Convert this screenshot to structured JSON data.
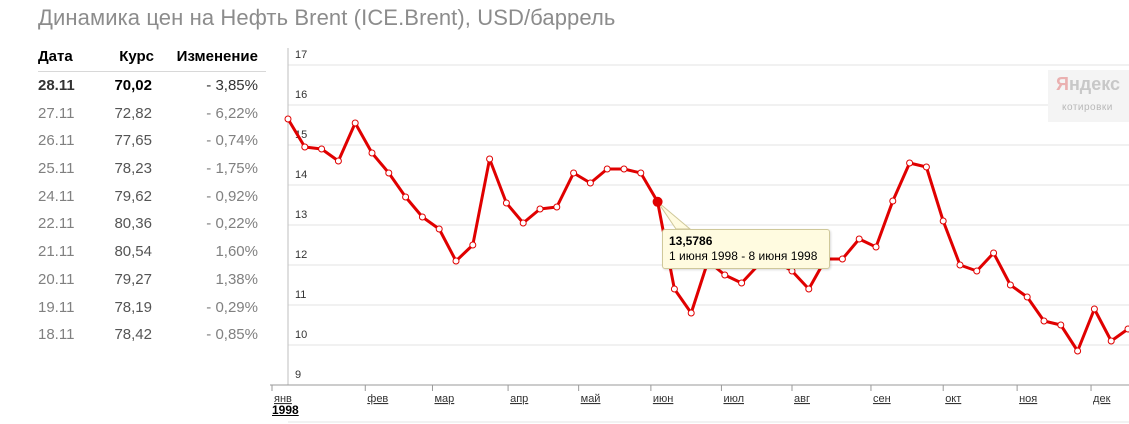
{
  "title": "Динамика цен на Нефть Brent (ICE.Brent), USD/баррель",
  "table": {
    "headers": {
      "date": "Дата",
      "rate": "Курс",
      "change": "Изменение"
    },
    "rows": [
      {
        "date": "28.11",
        "rate": "70,02",
        "change": "- 3,85%"
      },
      {
        "date": "27.11",
        "rate": "72,82",
        "change": "- 6,22%"
      },
      {
        "date": "26.11",
        "rate": "77,65",
        "change": "- 0,74%"
      },
      {
        "date": "25.11",
        "rate": "78,23",
        "change": "- 1,75%"
      },
      {
        "date": "24.11",
        "rate": "79,62",
        "change": "- 0,92%"
      },
      {
        "date": "22.11",
        "rate": "80,36",
        "change": "- 0,22%"
      },
      {
        "date": "21.11",
        "rate": "80,54",
        "change": "1,60%"
      },
      {
        "date": "20.11",
        "rate": "79,27",
        "change": "1,38%"
      },
      {
        "date": "19.11",
        "rate": "78,19",
        "change": "- 0,29%"
      },
      {
        "date": "18.11",
        "rate": "78,42",
        "change": "- 0,85%"
      }
    ]
  },
  "watermark": {
    "logo_accent": "Я",
    "logo_rest": "ндекс",
    "subtitle": "котировки"
  },
  "tooltip": {
    "value": "13,5786",
    "period": "1 июня 1998 - 8 июня 1998"
  },
  "colors": {
    "line": "#e00000",
    "highlight_point": "#e00000",
    "grid": "#e3e3e3",
    "axis_text": "#333333"
  },
  "chart_data": {
    "type": "line",
    "title": "",
    "xlabel": "",
    "ylabel": "",
    "ylim": [
      9,
      17
    ],
    "y_ticks": [
      9,
      10,
      11,
      12,
      13,
      14,
      15,
      16,
      17
    ],
    "x_year_label": "1998",
    "x_ticks": [
      {
        "label": "янв",
        "week": 0
      },
      {
        "label": "фев",
        "week": 4.6
      },
      {
        "label": "мар",
        "week": 8.6
      },
      {
        "label": "апр",
        "week": 13.1
      },
      {
        "label": "май",
        "week": 17.3
      },
      {
        "label": "июн",
        "week": 21.6
      },
      {
        "label": "июл",
        "week": 25.8
      },
      {
        "label": "авг",
        "week": 30.0
      },
      {
        "label": "сен",
        "week": 34.7
      },
      {
        "label": "окт",
        "week": 39.0
      },
      {
        "label": "ноя",
        "week": 43.4
      },
      {
        "label": "дек",
        "week": 47.8
      }
    ],
    "highlight_index": 22,
    "series": [
      {
        "values": [
          15.65,
          14.95,
          14.9,
          14.6,
          15.55,
          14.8,
          14.3,
          13.7,
          13.2,
          12.9,
          12.1,
          12.5,
          14.65,
          13.55,
          13.05,
          13.4,
          13.45,
          14.3,
          14.05,
          14.4,
          14.4,
          14.3,
          13.58,
          11.4,
          10.8,
          12.1,
          11.75,
          11.55,
          12.0,
          12.1,
          11.85,
          11.4,
          12.15,
          12.15,
          12.65,
          12.45,
          13.6,
          14.55,
          14.45,
          13.1,
          12.0,
          11.85,
          12.3,
          11.5,
          11.2,
          10.6,
          10.5,
          9.85,
          10.9,
          10.1,
          10.4
        ]
      }
    ]
  }
}
